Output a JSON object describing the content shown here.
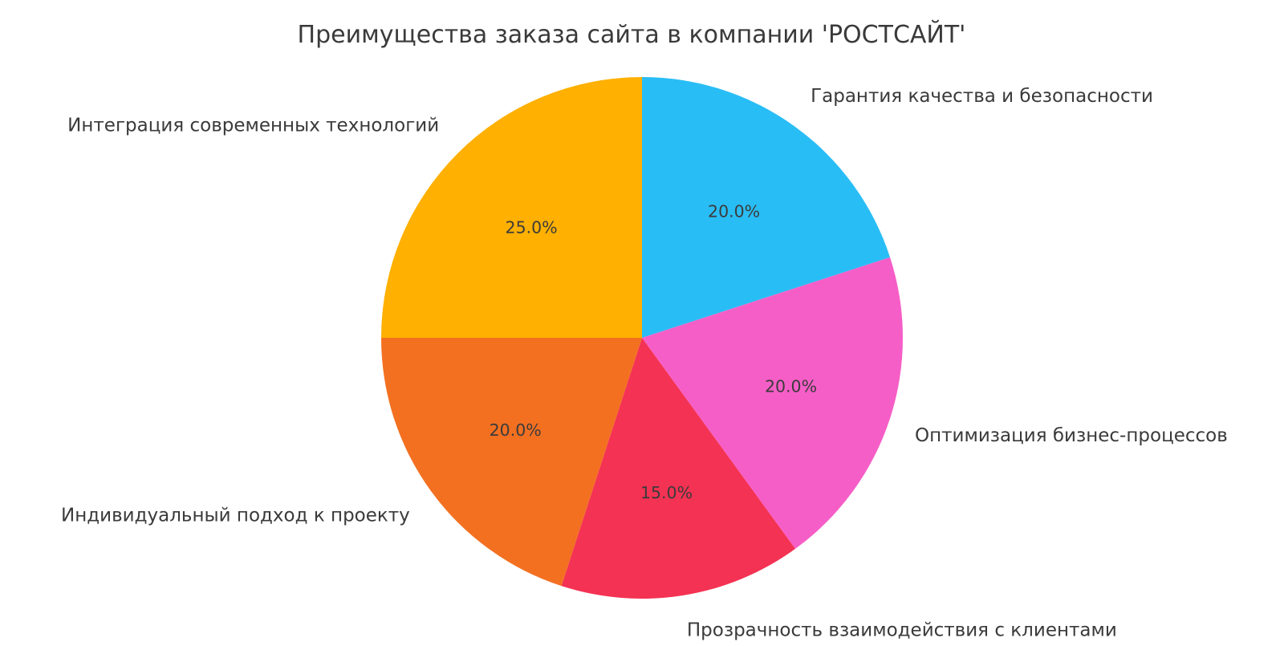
{
  "figure": {
    "background": "#ffffff",
    "text_color": "#3a3a3a"
  },
  "chart_data": {
    "type": "pie",
    "title": "Преимущества заказа сайта в компании 'РОСТСАЙТ'",
    "slices": [
      {
        "label": "Гарантия качества и безопасности",
        "value": 20.0,
        "pct_label": "20.0%",
        "color": "#29BDF6"
      },
      {
        "label": "Оптимизация бизнес-процессов",
        "value": 20.0,
        "pct_label": "20.0%",
        "color": "#F65EC7"
      },
      {
        "label": "Прозрачность взаимодействия с клиентами",
        "value": 15.0,
        "pct_label": "15.0%",
        "color": "#F43253"
      },
      {
        "label": "Индивидуальный подход к проекту",
        "value": 20.0,
        "pct_label": "20.0%",
        "color": "#F37021"
      },
      {
        "label": "Интеграция современных технологий",
        "value": 25.0,
        "pct_label": "25.0%",
        "color": "#FFB001"
      }
    ],
    "start_angle": 90,
    "direction": "clockwise",
    "label_distance": 1.1,
    "pct_distance": 0.6,
    "legend": "none",
    "grid": "off"
  }
}
